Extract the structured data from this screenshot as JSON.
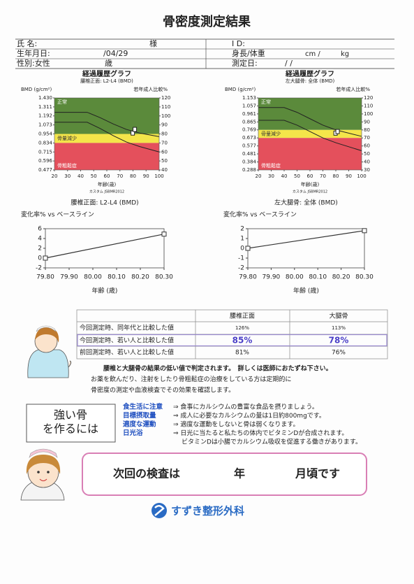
{
  "title": "骨密度測定結果",
  "patient": {
    "name_label": "氏 名:",
    "honorific": "様",
    "id_label": "I D:",
    "birth_label": "生年月日:",
    "birth_date": "/04/29",
    "height_weight_label": "身長/体重",
    "height_unit": "cm /",
    "weight_unit": "kg",
    "sex": "性別:女性",
    "age_unit": "歳",
    "exam_date_label": "測定日:",
    "exam_date": "/  /"
  },
  "history_charts": [
    {
      "type": "history",
      "title": "経過履歴グラフ",
      "subtitle": "腰椎正面: L2-L4 (BMD)",
      "y_label": "BMD (g/cm²)",
      "y2_label": "若年成人比較%",
      "x_label": "年齢(歳)",
      "footnote": "カスタム JSBMR2012",
      "xlim": [
        20,
        100
      ],
      "xticks": [
        20,
        30,
        40,
        50,
        60,
        70,
        80,
        90,
        100
      ],
      "ylim": [
        0.477,
        {
          "value": 1.43,
          "label": "1.430"
        }
      ],
      "yticks": [
        0.477,
        0.596,
        0.715,
        0.834,
        0.954,
        1.073,
        1.192,
        1.311,
        {
          "value": 1.43,
          "label": "1.430"
        }
      ],
      "y2lim": [
        40,
        120
      ],
      "y2ticks": [
        40,
        50,
        60,
        70,
        80,
        90,
        100,
        110,
        120
      ],
      "zones": [
        {
          "label": "正常",
          "from": 80,
          "to": 120,
          "color": "#5b8a3b",
          "text_color": "#ffffff"
        },
        {
          "label": "骨量減少",
          "from": 70,
          "to": 80,
          "color": "#f4e54a",
          "text_color": "#333333"
        },
        {
          "label": "骨粗鬆症",
          "from": 40,
          "to": 70,
          "color": "#e4505c",
          "text_color": "#ffffff"
        }
      ],
      "curves": [
        {
          "color": "#222222",
          "x": [
            20,
            45,
            55,
            65,
            75,
            85,
            100
          ],
          "values": [
            104,
            104,
            98,
            91,
            85,
            81,
            77
          ]
        },
        {
          "color": "#222222",
          "x": [
            20,
            45,
            55,
            65,
            75,
            85,
            100
          ],
          "values": [
            93,
            93,
            86,
            78,
            71,
            66,
            60
          ]
        }
      ],
      "series": [
        {
          "axis": "y2",
          "color": "#222222",
          "x": [
            79.8,
            80.3
          ],
          "values": [
            81,
            85
          ]
        }
      ]
    },
    {
      "type": "history",
      "title": "経過履歴グラフ",
      "subtitle": "左大腿骨: 全体 (BMD)",
      "y_label": "BMD (g/cm²)",
      "y2_label": "若年成人比較%",
      "x_label": "年齢(歳)",
      "footnote": "カスタム JSBMR2012",
      "xlim": [
        20,
        100
      ],
      "xticks": [
        20,
        30,
        40,
        50,
        60,
        70,
        80,
        90,
        100
      ],
      "ylim": [
        0.288,
        1.153
      ],
      "yticks": [
        0.288,
        0.384,
        0.481,
        0.577,
        0.673,
        0.769,
        0.865,
        0.961,
        1.057,
        1.153
      ],
      "y2lim": [
        30,
        120
      ],
      "y2ticks": [
        30,
        40,
        50,
        60,
        70,
        80,
        90,
        100,
        110,
        120
      ],
      "zones": [
        {
          "label": "正常",
          "from": 80,
          "to": 120,
          "color": "#5b8a3b",
          "text_color": "#ffffff"
        },
        {
          "label": "骨量減少",
          "from": 70,
          "to": 80,
          "color": "#f4e54a",
          "text_color": "#333333"
        },
        {
          "label": "骨粗鬆症",
          "from": 30,
          "to": 70,
          "color": "#e4505c",
          "text_color": "#ffffff"
        }
      ],
      "curves": [
        {
          "color": "#222222",
          "x": [
            20,
            40,
            50,
            60,
            70,
            80,
            100
          ],
          "values": [
            108,
            108,
            102,
            94,
            86,
            80,
            72
          ]
        },
        {
          "color": "#222222",
          "x": [
            20,
            40,
            50,
            60,
            70,
            80,
            100
          ],
          "values": [
            92,
            92,
            86,
            78,
            70,
            64,
            54
          ]
        }
      ],
      "series": [
        {
          "axis": "y2",
          "color": "#222222",
          "x": [
            79.8,
            80.3
          ],
          "values": [
            76,
            78
          ]
        }
      ]
    }
  ],
  "change_charts": [
    {
      "type": "line",
      "title": "腰椎正面: L2-L4 (BMD)",
      "y_label": "変化率% vs ベースライン",
      "x_label": "年齢 (歳)",
      "xlim": [
        {
          "value": 79.8,
          "label": "79.80"
        },
        {
          "value": 80.3,
          "label": "80.30"
        }
      ],
      "xticks": [
        {
          "value": 79.8,
          "label": "79.80"
        },
        {
          "value": 79.9,
          "label": "79.90"
        },
        {
          "value": 80.0,
          "label": "80.00"
        },
        {
          "value": 80.1,
          "label": "80.10"
        },
        {
          "value": 80.2,
          "label": "80.20"
        },
        {
          "value": 80.3,
          "label": "80.30"
        }
      ],
      "ylim": [
        -2,
        6
      ],
      "yticks": [
        -2,
        0,
        2,
        4,
        6
      ],
      "series": [
        {
          "color": "#333333",
          "x": [
            79.8,
            80.3
          ],
          "values": [
            0,
            4.9
          ]
        }
      ]
    },
    {
      "type": "line",
      "title": "左大腿骨: 全体 (BMD)",
      "y_label": "変化率% vs ベースライン",
      "x_label": "年齢 (歳)",
      "xlim": [
        {
          "value": 79.8,
          "label": "79.80"
        },
        {
          "value": 80.3,
          "label": "80.30"
        }
      ],
      "xticks": [
        {
          "value": 79.8,
          "label": "79.80"
        },
        {
          "value": 79.9,
          "label": "79.90"
        },
        {
          "value": 80.0,
          "label": "80.00"
        },
        {
          "value": 80.1,
          "label": "80.10"
        },
        {
          "value": 80.2,
          "label": "80.20"
        },
        {
          "value": 80.3,
          "label": "80.30"
        }
      ],
      "ylim": [
        -2,
        2
      ],
      "yticks": [
        -2,
        -1,
        0,
        1,
        2
      ],
      "series": [
        {
          "color": "#333333",
          "x": [
            79.8,
            80.3
          ],
          "values": [
            0,
            1.8
          ]
        }
      ]
    }
  ],
  "table": {
    "header": [
      "腰椎正面",
      "大腿骨"
    ],
    "rows": [
      [
        "今回測定時、同年代と比較した値",
        "126%",
        "113%"
      ],
      [
        "今回測定時、若い人と比較した値",
        "85%",
        "78%"
      ],
      [
        "前回測定時、若い人と比較した値",
        "81%",
        "76%"
      ]
    ]
  },
  "notes": [
    "腰椎と大腿骨の結果の低い値で判定されます。　詳しくは医師におたずね下さい。",
    "お薬を飲んだり、注射をしたり骨粗鬆症の治療をしている方は定期的に",
    "骨密度の測定や血液検査でその効果を確認します。"
  ],
  "tips": {
    "title_lines": [
      "強い骨",
      "を作るには"
    ],
    "items": [
      {
        "label": "食生活に注意",
        "text": [
          "⇒ 食事にカルシウムの豊富な食品を摂りましょう。"
        ]
      },
      {
        "label": "目標摂取量",
        "text": [
          "⇒ 成人に必要なカルシウムの量は1日約800mgです。"
        ]
      },
      {
        "label": "適度な運動",
        "text": [
          "⇒ 適度な運動をしないと骨は弱くなります。"
        ]
      },
      {
        "label": "日光浴",
        "text": [
          "⇒ 日光に当たると私たちの体内でビタミンDが合成されます。",
          "ビタミンDは小腸でカルシウム吸収を促進する働きがあります。"
        ]
      }
    ]
  },
  "next_exam": [
    "次回の検査は",
    "年",
    "月頃です"
  ],
  "clinic": "すずき整形外科"
}
